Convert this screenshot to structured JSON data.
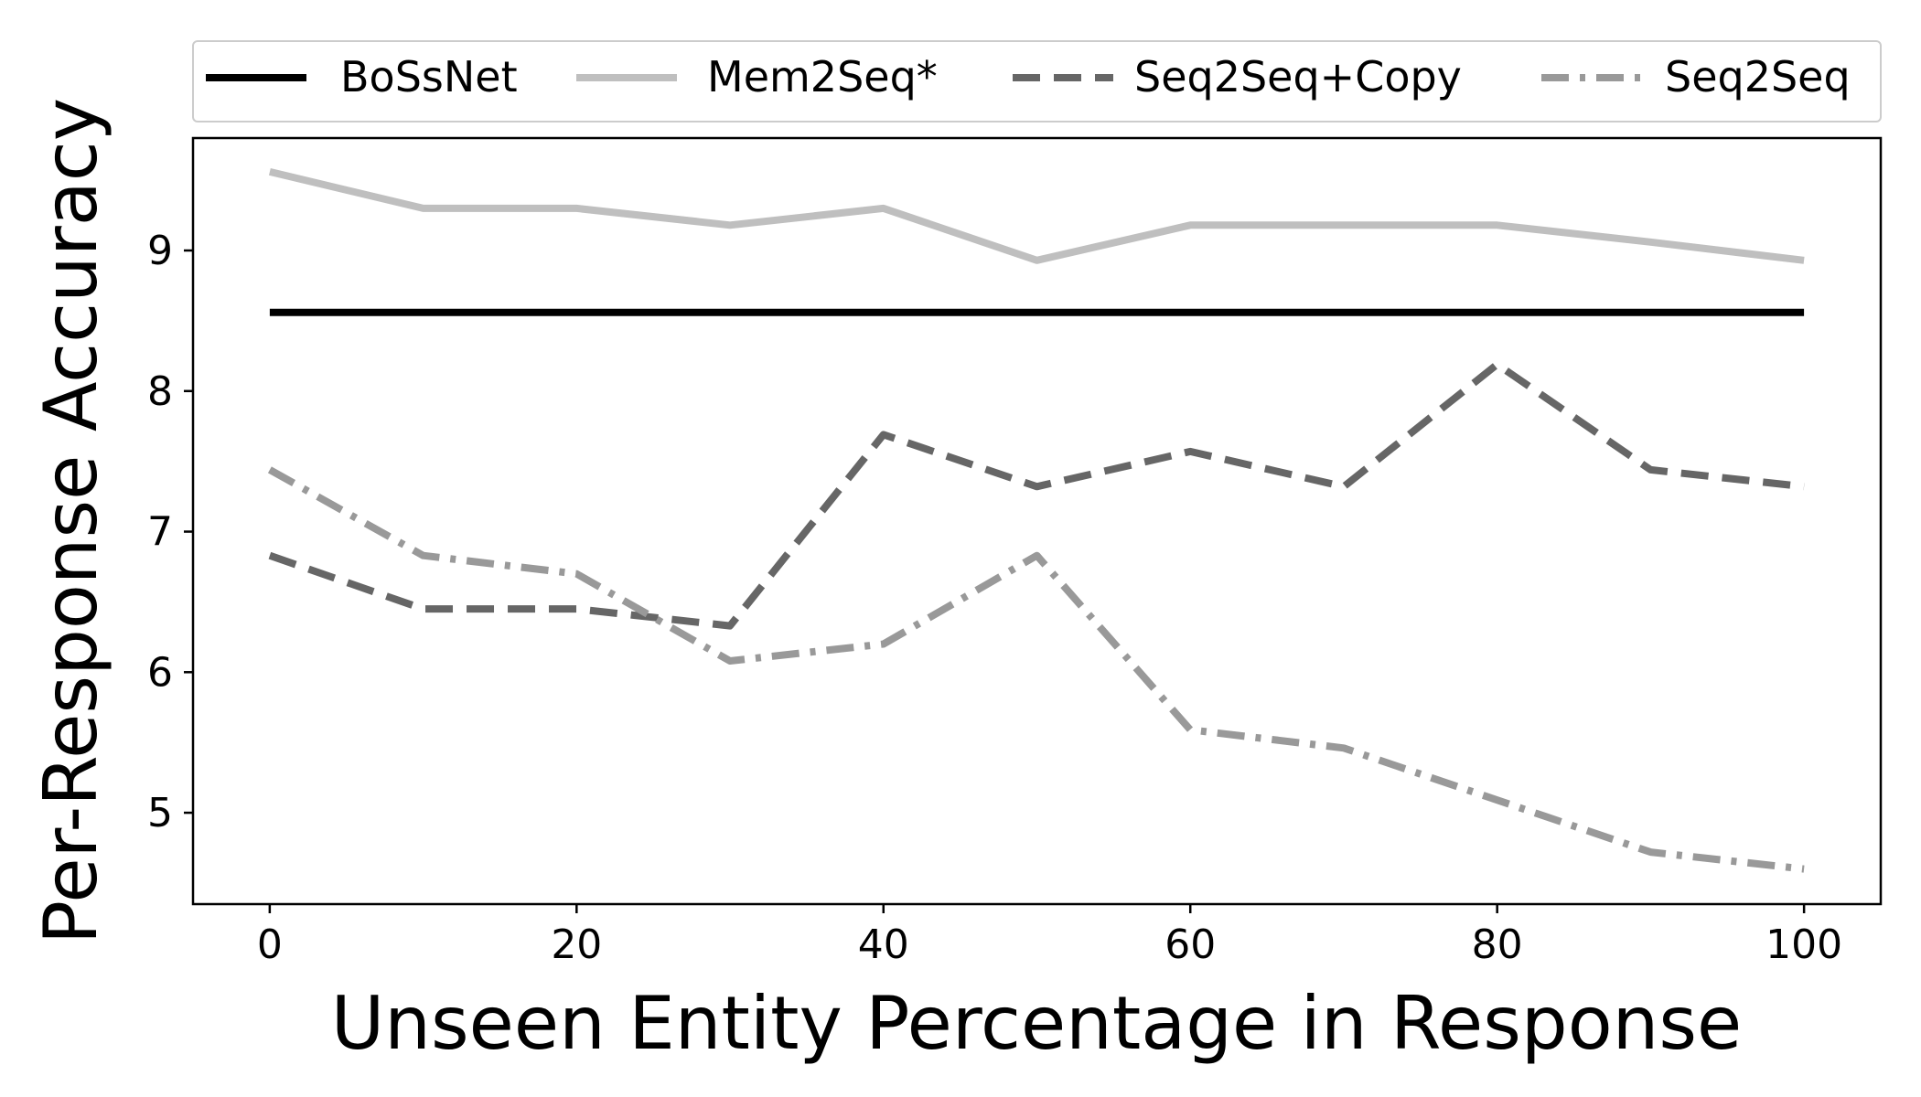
{
  "chart_data": {
    "type": "line",
    "xlabel": "Unseen Entity Percentage in Response",
    "ylabel": "Per-Response Accuracy",
    "xlim": [
      -5,
      105
    ],
    "ylim": [
      4.35,
      9.8
    ],
    "xticks": [
      0,
      20,
      40,
      60,
      80,
      100
    ],
    "yticks": [
      5,
      6,
      7,
      8,
      9
    ],
    "legend": "top-outside",
    "grid": false,
    "x": [
      0,
      10,
      20,
      30,
      40,
      50,
      60,
      70,
      80,
      90,
      100
    ],
    "series": [
      {
        "name": "BoSsNet",
        "color": "#000000",
        "style": "solid",
        "values": [
          8.56,
          8.56,
          8.56,
          8.56,
          8.56,
          8.56,
          8.56,
          8.56,
          8.56,
          8.56,
          8.56
        ]
      },
      {
        "name": "Mem2Seq*",
        "color": "#bfbfbf",
        "style": "solid",
        "values": [
          9.56,
          9.3,
          9.3,
          9.18,
          9.3,
          8.93,
          9.18,
          9.18,
          9.18,
          9.06,
          8.93
        ]
      },
      {
        "name": "Seq2Seq+Copy",
        "color": "#666666",
        "style": "dashed",
        "values": [
          6.83,
          6.45,
          6.45,
          6.33,
          7.69,
          7.32,
          7.57,
          7.32,
          8.19,
          7.44,
          7.32
        ]
      },
      {
        "name": "Seq2Seq",
        "color": "#999999",
        "style": "dashdot",
        "values": [
          7.44,
          6.83,
          6.7,
          6.08,
          6.2,
          6.83,
          5.59,
          5.46,
          5.09,
          4.72,
          4.6
        ]
      }
    ]
  }
}
